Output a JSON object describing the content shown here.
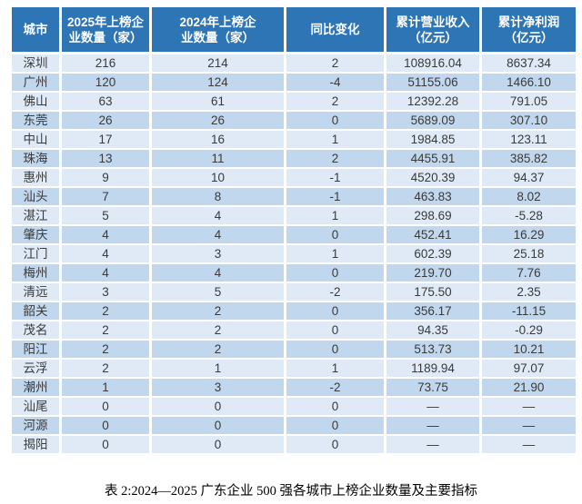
{
  "colors": {
    "header_bg": "#2e75b6",
    "row_light": "#dfeaf6",
    "row_dark": "#c1d7ee"
  },
  "table": {
    "columns": [
      "城市",
      "2025年上榜企\n业数量（家）",
      "2024年上榜企\n业数量（家）",
      "同比变化",
      "累计营业收入\n（亿元）",
      "累计净利润\n（亿元）"
    ],
    "rows": [
      [
        "深圳",
        "216",
        "214",
        "2",
        "108916.04",
        "8637.34"
      ],
      [
        "广州",
        "120",
        "124",
        "-4",
        "51155.06",
        "1466.10"
      ],
      [
        "佛山",
        "63",
        "61",
        "2",
        "12392.28",
        "791.05"
      ],
      [
        "东莞",
        "26",
        "26",
        "0",
        "5689.09",
        "307.10"
      ],
      [
        "中山",
        "17",
        "16",
        "1",
        "1984.85",
        "123.11"
      ],
      [
        "珠海",
        "13",
        "11",
        "2",
        "4455.91",
        "385.82"
      ],
      [
        "惠州",
        "9",
        "10",
        "-1",
        "4520.39",
        "94.37"
      ],
      [
        "汕头",
        "7",
        "8",
        "-1",
        "463.83",
        "8.02"
      ],
      [
        "湛江",
        "5",
        "4",
        "1",
        "298.69",
        "-5.28"
      ],
      [
        "肇庆",
        "4",
        "4",
        "0",
        "452.41",
        "16.29"
      ],
      [
        "江门",
        "4",
        "3",
        "1",
        "602.39",
        "25.18"
      ],
      [
        "梅州",
        "4",
        "4",
        "0",
        "219.70",
        "7.76"
      ],
      [
        "清远",
        "3",
        "5",
        "-2",
        "175.50",
        "2.35"
      ],
      [
        "韶关",
        "2",
        "2",
        "0",
        "356.17",
        "-11.15"
      ],
      [
        "茂名",
        "2",
        "2",
        "0",
        "94.35",
        "-0.29"
      ],
      [
        "阳江",
        "2",
        "2",
        "0",
        "513.73",
        "10.21"
      ],
      [
        "云浮",
        "2",
        "1",
        "1",
        "1189.94",
        "97.07"
      ],
      [
        "潮州",
        "1",
        "3",
        "-2",
        "73.75",
        "21.90"
      ],
      [
        "汕尾",
        "0",
        "0",
        "0",
        "—",
        "—"
      ],
      [
        "河源",
        "0",
        "0",
        "0",
        "—",
        "—"
      ],
      [
        "揭阳",
        "0",
        "0",
        "0",
        "—",
        "—"
      ]
    ]
  },
  "caption": "表 2:2024—2025 广东企业 500 强各城市上榜企业数量及主要指标"
}
